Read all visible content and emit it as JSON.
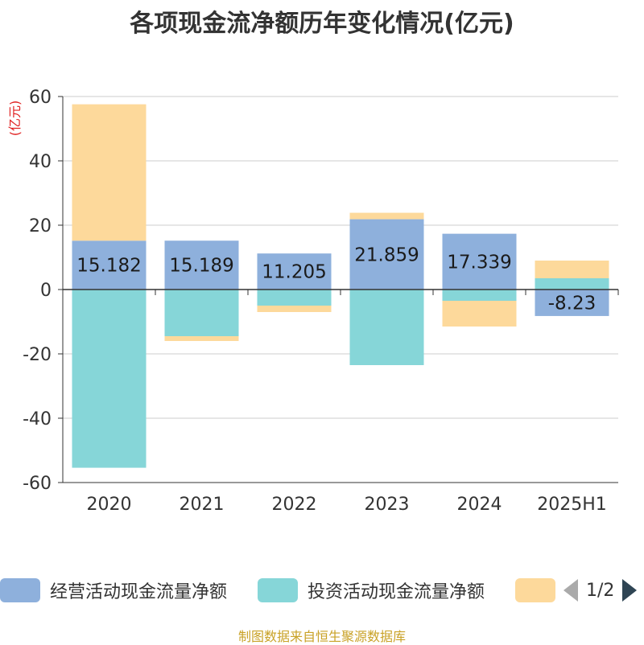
{
  "title": "各项现金流净额历年变化情况(亿元)",
  "unit": "(亿元)",
  "source": "制图数据来自恒生聚源数据库",
  "pager": "1/2",
  "colors": {
    "operating": "#8eb0dc",
    "investing": "#86d6d8",
    "financing": "#fdd99b"
  },
  "chart_data": {
    "type": "bar",
    "stacked": true,
    "categories": [
      "2020",
      "2021",
      "2022",
      "2023",
      "2024",
      "2025H1"
    ],
    "ylim": [
      -60,
      60
    ],
    "yticks": [
      60,
      40,
      20,
      0,
      -20,
      -40,
      -60
    ],
    "grid": true,
    "legend": "bottom",
    "series": [
      {
        "name": "经营活动现金流量净额",
        "values": [
          15.182,
          15.189,
          11.205,
          21.859,
          17.339,
          -8.23
        ],
        "labels": [
          "15.182",
          "15.189",
          "11.205",
          "21.859",
          "17.339",
          "-8.23"
        ]
      },
      {
        "name": "投资活动现金流量净额",
        "values": [
          -55.4,
          -14.5,
          -5.0,
          -23.5,
          -3.5,
          3.5
        ]
      },
      {
        "name": "",
        "values": [
          42.4,
          -1.5,
          -2.0,
          2.0,
          -8.0,
          5.5
        ]
      }
    ]
  }
}
